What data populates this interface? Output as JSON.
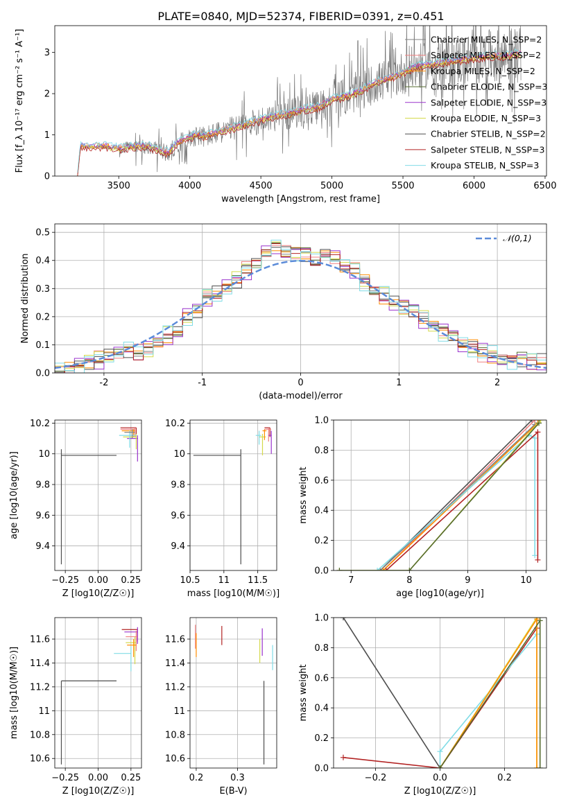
{
  "figure": {
    "title": "PLATE=0840, MJD=52374, FIBERID=0391, z=0.451"
  },
  "colors": {
    "Chabrier MILES": "#808080",
    "Salpeter MILES": "#f08080",
    "Kroupa MILES": "#ff8c00",
    "Chabrier ELODIE": "#556b2f",
    "Salpeter ELODIE": "#9932cc",
    "Kroupa ELODIE": "#d4d94a",
    "Chabrier STELIB": "#4d4d4d",
    "Salpeter STELIB": "#b22222",
    "Kroupa STELIB": "#80dce6",
    "gaussian": "#5b8bd9"
  },
  "chart_data": [
    {
      "id": "spectrum",
      "type": "line",
      "xlabel": "wavelength [Angstrom, rest frame]",
      "ylabel": "Flux [f_λ 10⁻¹⁷ erg cm⁻² s⁻¹ A⁻¹]",
      "xlim": [
        3050,
        6510
      ],
      "ylim": [
        0,
        3.65
      ],
      "xticks": [
        3500,
        4000,
        4500,
        5000,
        5500,
        6000,
        6500
      ],
      "yticks": [
        0,
        1,
        2,
        3
      ],
      "grid": false,
      "legend_position": "lower-right",
      "legend": [
        "Chabrier MILES, N_SSP=2",
        "Salpeter MILES, N_SSP=2",
        "Kroupa MILES, N_SSP=2",
        "Chabrier ELODIE, N_SSP=3",
        "Salpeter ELODIE, N_SSP=3",
        "Kroupa ELODIE, N_SSP=3",
        "Chabrier STELIB, N_SSP=2",
        "Salpeter STELIB, N_SSP=3",
        "Kroupa STELIB, N_SSP=3"
      ],
      "data_series": {
        "x_range": [
          3210,
          6330
        ],
        "smooth": {
          "x": [
            3210,
            3230,
            3300,
            3400,
            3500,
            3600,
            3700,
            3800,
            3850,
            3900,
            3950,
            4000,
            4050,
            4100,
            4200,
            4300,
            4400,
            4500,
            4600,
            4700,
            4800,
            4900,
            5000,
            5100,
            5200,
            5300,
            5400,
            5500,
            5600,
            5700,
            5800,
            5900,
            6000,
            6100,
            6200,
            6300
          ],
          "y": [
            0,
            0.72,
            0.7,
            0.72,
            0.65,
            0.7,
            0.72,
            0.6,
            0.55,
            0.75,
            0.85,
            0.92,
            1.0,
            0.95,
            1.05,
            1.15,
            1.25,
            1.35,
            1.45,
            1.5,
            1.6,
            1.65,
            1.85,
            1.92,
            2.05,
            2.25,
            2.35,
            2.5,
            2.65,
            2.7,
            2.75,
            2.8,
            2.85,
            2.9,
            2.9,
            2.95
          ]
        },
        "noise_band_from": 3500
      },
      "model_offsets": [
        0.0,
        0.05,
        0.02,
        0.0,
        0.03,
        -0.02,
        0.0,
        -0.05,
        0.08
      ]
    },
    {
      "id": "residuals",
      "type": "histogram",
      "xlabel": "(data-model)/error",
      "ylabel": "Normed distribution",
      "xlim": [
        -2.5,
        2.5
      ],
      "ylim": [
        0,
        0.53
      ],
      "xticks": [
        -2,
        -1,
        0,
        1,
        2
      ],
      "yticks": [
        0.0,
        0.1,
        0.2,
        0.3,
        0.4,
        0.5
      ],
      "grid": true,
      "legend": [
        "𝒩(0,1)"
      ],
      "legend_position": "top-right",
      "bins": {
        "start": -2.5,
        "width": 0.1,
        "values": [
          0.02,
          0.02,
          0.03,
          0.04,
          0.05,
          0.06,
          0.07,
          0.08,
          0.07,
          0.09,
          0.11,
          0.13,
          0.15,
          0.2,
          0.22,
          0.27,
          0.28,
          0.3,
          0.33,
          0.37,
          0.39,
          0.44,
          0.45,
          0.43,
          0.43,
          0.42,
          0.4,
          0.42,
          0.41,
          0.38,
          0.37,
          0.33,
          0.29,
          0.27,
          0.25,
          0.24,
          0.22,
          0.19,
          0.17,
          0.15,
          0.13,
          0.1,
          0.09,
          0.07,
          0.06,
          0.05,
          0.05,
          0.05,
          0.04,
          0.04
        ]
      },
      "bin_jitter": [
        0.0,
        0.02,
        -0.015,
        0.01,
        0.025,
        -0.02,
        0.015,
        -0.01,
        0.03
      ]
    },
    {
      "id": "z_age",
      "type": "errorbar",
      "xlabel": "Z [log10(Z/Z☉)]",
      "ylabel": "age [log10(age/yr)]",
      "xlim": [
        -0.33,
        0.33
      ],
      "ylim": [
        9.24,
        10.22
      ],
      "xticks": [
        -0.25,
        0.0,
        0.25
      ],
      "xticklabels": [
        "−0.25",
        "0.00",
        "0.25"
      ],
      "yticks": [
        9.4,
        9.6,
        9.8,
        10.0,
        10.2
      ],
      "grid": true,
      "points": [
        {
          "model": "Chabrier STELIB",
          "x": -0.28,
          "y": 9.99,
          "xerr": [
            0,
            0.42
          ],
          "yerr": [
            0.71,
            0.04
          ]
        },
        {
          "model": "Salpeter STELIB",
          "x": 0.29,
          "y": 10.17,
          "xerr": [
            0.12,
            0.0
          ],
          "yerr": [
            0.06,
            0.0
          ]
        },
        {
          "model": "Salpeter MILES",
          "x": 0.28,
          "y": 10.16,
          "xerr": [
            0.11,
            0.0
          ],
          "yerr": [
            0.05,
            0.01
          ]
        },
        {
          "model": "Kroupa MILES",
          "x": 0.27,
          "y": 10.15,
          "xerr": [
            0.09,
            0.01
          ],
          "yerr": [
            0.04,
            0.01
          ]
        },
        {
          "model": "Salpeter ELODIE",
          "x": 0.3,
          "y": 10.1,
          "xerr": [
            0.08,
            0.0
          ],
          "yerr": [
            0.15,
            0.02
          ]
        },
        {
          "model": "Kroupa ELODIE",
          "x": 0.29,
          "y": 10.11,
          "xerr": [
            0.1,
            0.0
          ],
          "yerr": [
            0.08,
            0.02
          ]
        },
        {
          "model": "Kroupa STELIB",
          "x": 0.24,
          "y": 10.12,
          "xerr": [
            0.08,
            0.05
          ],
          "yerr": [
            0.08,
            0.03
          ]
        },
        {
          "model": "Chabrier MILES",
          "x": 0.26,
          "y": 10.14,
          "xerr": [
            0.06,
            0.02
          ],
          "yerr": [
            0.04,
            0.02
          ]
        }
      ]
    },
    {
      "id": "mass_age",
      "type": "errorbar",
      "xlabel": "mass [log10(M/M☉)]",
      "ylabel": "",
      "xlim": [
        10.5,
        11.78
      ],
      "ylim": [
        9.24,
        10.22
      ],
      "xticks": [
        10.5,
        11.0,
        11.5
      ],
      "yticks": [
        9.4,
        9.6,
        9.8,
        10.0,
        10.2
      ],
      "grid": true,
      "points": [
        {
          "model": "Chabrier STELIB",
          "x": 11.25,
          "y": 9.99,
          "xerr": [
            0.7,
            0
          ],
          "yerr": [
            0.71,
            0.04
          ]
        },
        {
          "model": "Salpeter STELIB",
          "x": 11.68,
          "y": 10.17,
          "xerr": [
            0.08,
            0.0
          ],
          "yerr": [
            0.06,
            0.0
          ]
        },
        {
          "model": "Salpeter MILES",
          "x": 11.66,
          "y": 10.16,
          "xerr": [
            0.06,
            0.04
          ],
          "yerr": [
            0.08,
            0.01
          ]
        },
        {
          "model": "Salpeter ELODIE",
          "x": 11.7,
          "y": 10.12,
          "xerr": [
            0.04,
            0.0
          ],
          "yerr": [
            0.12,
            0.03
          ]
        },
        {
          "model": "Kroupa ELODIE",
          "x": 11.57,
          "y": 10.11,
          "xerr": [
            0.05,
            0.05
          ],
          "yerr": [
            0.12,
            0.02
          ]
        },
        {
          "model": "Kroupa STELIB",
          "x": 11.52,
          "y": 10.12,
          "xerr": [
            0.05,
            0.03
          ],
          "yerr": [
            0.06,
            0.03
          ]
        },
        {
          "model": "Kroupa MILES",
          "x": 11.6,
          "y": 10.15,
          "xerr": [
            0.03,
            0.03
          ],
          "yerr": [
            0.06,
            0.01
          ]
        }
      ]
    },
    {
      "id": "age_weight",
      "type": "line",
      "xlabel": "age [log10(age/yr)]",
      "ylabel": "mass weight",
      "xlim": [
        6.7,
        10.35
      ],
      "ylim": [
        0,
        1
      ],
      "xticks": [
        7,
        8,
        9,
        10
      ],
      "yticks": [
        0.0,
        0.2,
        0.4,
        0.6,
        0.8,
        1.0
      ],
      "grid": true,
      "series": [
        {
          "model": "Chabrier STELIB",
          "x": [
            7.5,
            10.1
          ],
          "y": [
            0.0,
            1.0
          ]
        },
        {
          "model": "Salpeter MILES",
          "x": [
            7.55,
            10.15
          ],
          "y": [
            0.0,
            1.0
          ]
        },
        {
          "model": "Chabrier MILES",
          "x": [
            7.5,
            10.15
          ],
          "y": [
            0.0,
            0.97
          ]
        },
        {
          "model": "Kroupa MILES",
          "x": [
            7.55,
            10.2
          ],
          "y": [
            0.0,
            0.98
          ]
        },
        {
          "model": "Kroupa STELIB",
          "x": [
            7.45,
            10.05,
            10.15,
            10.15
          ],
          "y": [
            0.0,
            0.9,
            0.88,
            0.1
          ]
        },
        {
          "model": "Salpeter STELIB",
          "x": [
            7.6,
            10.2,
            10.2
          ],
          "y": [
            0.0,
            0.92,
            0.07
          ]
        },
        {
          "model": "Kroupa ELODIE",
          "x": [
            6.8,
            8.0,
            10.25
          ],
          "y": [
            0.0,
            0.0,
            1.0
          ]
        },
        {
          "model": "Chabrier ELODIE",
          "x": [
            6.8,
            8.0,
            10.22
          ],
          "y": [
            0.0,
            0.0,
            0.98
          ]
        }
      ]
    },
    {
      "id": "z_mass",
      "type": "errorbar",
      "xlabel": "Z [log10(Z/Z☉)]",
      "ylabel": "mass [log10(M/M☉)]",
      "xlim": [
        -0.33,
        0.33
      ],
      "ylim": [
        10.52,
        11.78
      ],
      "xticks": [
        -0.25,
        0.0,
        0.25
      ],
      "xticklabels": [
        "−0.25",
        "0.00",
        "0.25"
      ],
      "yticks": [
        10.6,
        10.8,
        11.0,
        11.2,
        11.4,
        11.6
      ],
      "grid": true,
      "points": [
        {
          "model": "Chabrier STELIB",
          "x": -0.28,
          "y": 11.25,
          "xerr": [
            0,
            0.42
          ],
          "yerr": [
            0.7,
            0
          ]
        },
        {
          "model": "Salpeter STELIB",
          "x": 0.3,
          "y": 11.68,
          "xerr": [
            0.12,
            0
          ],
          "yerr": [
            0.1,
            0.0
          ]
        },
        {
          "model": "Salpeter ELODIE",
          "x": 0.3,
          "y": 11.66,
          "xerr": [
            0.1,
            0
          ],
          "yerr": [
            0.1,
            0.04
          ]
        },
        {
          "model": "Salpeter MILES",
          "x": 0.29,
          "y": 11.62,
          "xerr": [
            0.08,
            0.01
          ],
          "yerr": [
            0.12,
            0.05
          ]
        },
        {
          "model": "Kroupa ELODIE",
          "x": 0.28,
          "y": 11.57,
          "xerr": [
            0.07,
            0.01
          ],
          "yerr": [
            0.18,
            0.05
          ]
        },
        {
          "model": "Kroupa STELIB",
          "x": 0.25,
          "y": 11.48,
          "xerr": [
            0.13,
            0.0
          ],
          "yerr": [
            0.15,
            0.06
          ]
        },
        {
          "model": "Kroupa MILES",
          "x": 0.27,
          "y": 11.55,
          "xerr": [
            0.05,
            0.02
          ],
          "yerr": [
            0.1,
            0.05
          ]
        }
      ]
    },
    {
      "id": "ebv_mass",
      "type": "errorbar",
      "xlabel": "E(B-V)",
      "ylabel": "",
      "xlim": [
        0.185,
        0.395
      ],
      "ylim": [
        10.52,
        11.78
      ],
      "xticks": [
        0.2,
        0.3
      ],
      "yticks": [
        10.6,
        10.8,
        11.0,
        11.2,
        11.4,
        11.6
      ],
      "grid": true,
      "points": [
        {
          "model": "Chabrier STELIB",
          "x": 0.364,
          "y": 11.25,
          "yerr": [
            0.7,
            0.0
          ]
        },
        {
          "model": "Salpeter STELIB",
          "x": 0.262,
          "y": 11.62,
          "yerr": [
            0.07,
            0.09
          ]
        },
        {
          "model": "Salpeter ELODIE",
          "x": 0.36,
          "y": 11.58,
          "yerr": [
            0.12,
            0.11
          ]
        },
        {
          "model": "Kroupa ELODIE",
          "x": 0.354,
          "y": 11.5,
          "yerr": [
            0.1,
            0.1
          ]
        },
        {
          "model": "Kroupa STELIB",
          "x": 0.385,
          "y": 11.44,
          "yerr": [
            0.1,
            0.11
          ]
        },
        {
          "model": "Salpeter MILES",
          "x": 0.198,
          "y": 11.62,
          "yerr": [
            0.1,
            0.1
          ]
        },
        {
          "model": "Kroupa MILES",
          "x": 0.2,
          "y": 11.55,
          "yerr": [
            0.1,
            0.1
          ]
        }
      ]
    },
    {
      "id": "z_weight",
      "type": "line",
      "xlabel": "Z [log10(Z/Z☉)]",
      "ylabel": "mass weight",
      "xlim": [
        -0.33,
        0.33
      ],
      "ylim": [
        0,
        1
      ],
      "xticks": [
        -0.2,
        0.0,
        0.2
      ],
      "xticklabels": [
        "−0.2",
        "0.0",
        "0.2"
      ],
      "yticks": [
        0.0,
        0.2,
        0.4,
        0.6,
        0.8,
        1.0
      ],
      "grid": true,
      "series": [
        {
          "model": "Chabrier STELIB",
          "x": [
            -0.3,
            0.0
          ],
          "y": [
            1.0,
            0.0
          ]
        },
        {
          "model": "Salpeter STELIB",
          "x": [
            -0.3,
            0.0,
            0.3
          ],
          "y": [
            0.07,
            0.0,
            0.93
          ]
        },
        {
          "model": "Kroupa STELIB",
          "x": [
            0.0,
            0.0,
            0.3
          ],
          "y": [
            0.0,
            0.11,
            0.89
          ]
        },
        {
          "model": "Kroupa ELODIE",
          "x": [
            0.0,
            0.3,
            0.3
          ],
          "y": [
            0.0,
            1.0,
            0.0
          ]
        },
        {
          "model": "Kroupa MILES",
          "x": [
            0.0,
            0.3,
            0.3
          ],
          "y": [
            0.0,
            0.99,
            0.0
          ]
        },
        {
          "model": "Chabrier ELODIE",
          "x": [
            0.0,
            0.31,
            0.31
          ],
          "y": [
            0.0,
            0.98,
            0.0
          ]
        }
      ]
    }
  ]
}
